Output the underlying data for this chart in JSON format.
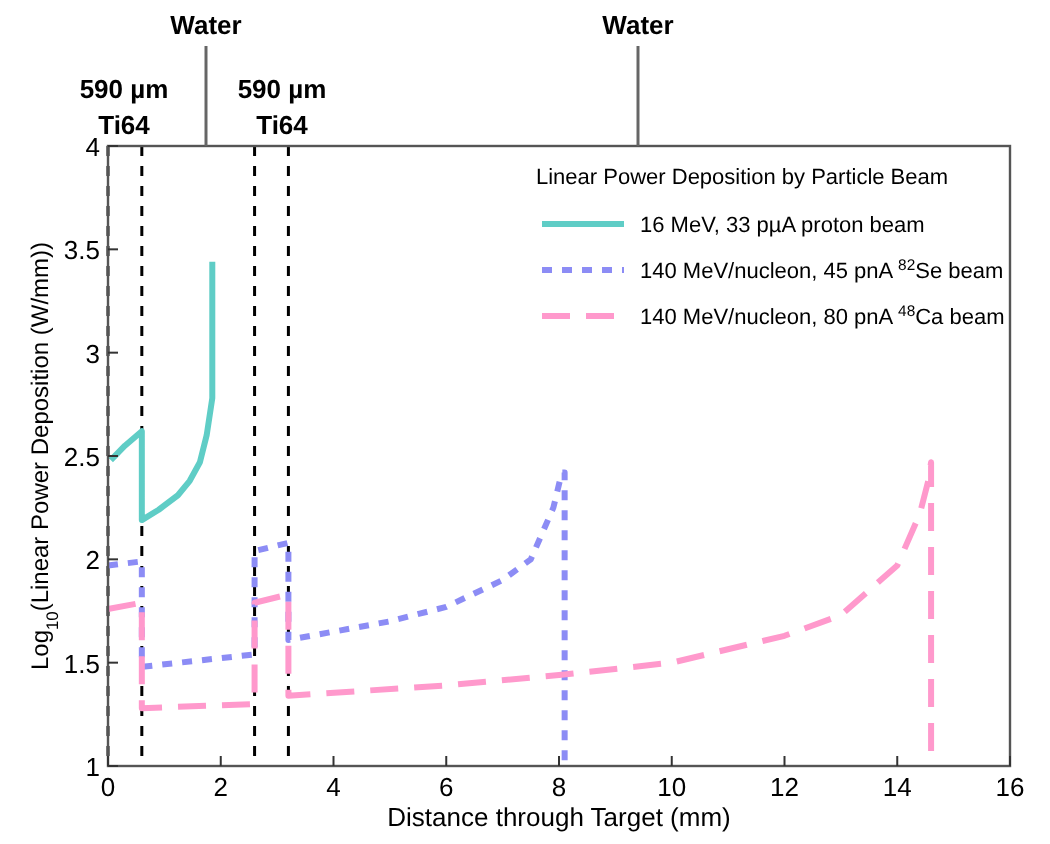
{
  "chart_data": {
    "type": "line",
    "xlabel": "Distance through Target (mm)",
    "ylabel": "Log$_{10}$(Linear Power Deposition (W/mm))",
    "legend_title": "Linear Power Deposition by Particle Beam",
    "legend": "top right",
    "xlim": [
      0,
      16
    ],
    "ylim": [
      1,
      4
    ],
    "xticks": [
      0,
      2,
      4,
      6,
      8,
      10,
      12,
      14,
      16
    ],
    "yticks": [
      1,
      1.5,
      2,
      2.5,
      3,
      3.5,
      4
    ],
    "series": [
      {
        "name": "16 MeV, 33 pµA proton beam",
        "color": "#5fcdc6",
        "line_style": "solid",
        "x": [
          0.05,
          0.3,
          0.6,
          0.6,
          0.9,
          1.24,
          1.45,
          1.63,
          1.75,
          1.85,
          1.85
        ],
        "values": [
          2.48,
          2.55,
          2.62,
          2.19,
          2.24,
          2.31,
          2.38,
          2.47,
          2.6,
          2.78,
          3.44
        ]
      },
      {
        "name": "140 MeV/nucleon, 45 pnA $^{82}$Se beam",
        "color": "#8c8cf5",
        "line_style": "dotted",
        "x": [
          0,
          0.6,
          0.6,
          2.6,
          2.6,
          3.2,
          3.2,
          4,
          5,
          6,
          7,
          7.5,
          7.9,
          8.05,
          8.1,
          8.1
        ],
        "values": [
          1.97,
          1.99,
          1.48,
          1.54,
          2.04,
          2.08,
          1.61,
          1.65,
          1.7,
          1.77,
          1.9,
          2.0,
          2.25,
          2.42,
          2.42,
          1.0
        ]
      },
      {
        "name": "140 MeV/nucleon, 80 pnA $^{48}$Ca beam",
        "color": "#ff99cc",
        "line_style": "dashed",
        "x": [
          0,
          0.6,
          0.6,
          2.6,
          2.6,
          3.2,
          3.2,
          6,
          8,
          10,
          12,
          13,
          14,
          14.4,
          14.55,
          14.6,
          14.6
        ],
        "values": [
          1.76,
          1.79,
          1.28,
          1.3,
          1.79,
          1.83,
          1.34,
          1.39,
          1.44,
          1.5,
          1.63,
          1.73,
          1.97,
          2.22,
          2.38,
          2.47,
          1.0
        ]
      }
    ],
    "ref_lines": [
      {
        "axis": "x",
        "value": 0,
        "color": "#000000",
        "line_style": "dotted"
      },
      {
        "axis": "x",
        "value": 0.6,
        "color": "#000000",
        "line_style": "dotted"
      },
      {
        "axis": "x",
        "value": 2.6,
        "color": "#000000",
        "line_style": "dotted"
      },
      {
        "axis": "x",
        "value": 3.2,
        "color": "#000000",
        "line_style": "dotted"
      }
    ],
    "annotations": [
      "590 µm\nTi64",
      "Water",
      "590 µm\nTi64",
      "Water"
    ]
  }
}
